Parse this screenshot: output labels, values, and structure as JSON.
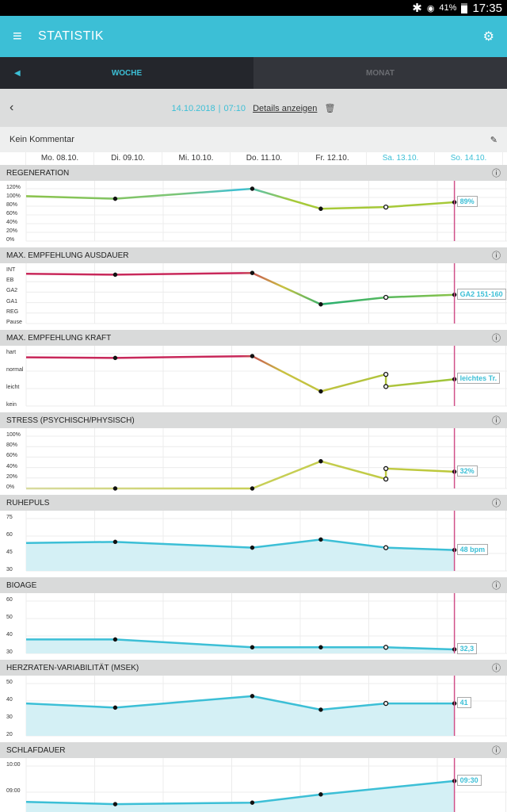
{
  "status_bar": {
    "battery": "41%",
    "time": "17:35"
  },
  "app_bar": {
    "title": "STATISTIK"
  },
  "tabs": [
    {
      "label": "WOCHE",
      "active": true
    },
    {
      "label": "MONAT",
      "active": false
    }
  ],
  "date_bar": {
    "date": "14.10.2018",
    "separator": "|",
    "time": "07:10",
    "details_label": "Details anzeigen"
  },
  "comment": {
    "text": "Kein Kommentar"
  },
  "days": [
    "Mo. 08.10.",
    "Di. 09.10.",
    "Mi. 10.10.",
    "Do. 11.10.",
    "Fr. 12.10.",
    "Sa. 13.10.",
    "So. 14.10."
  ],
  "colors": {
    "accent": "#3cbfd6",
    "marker": "#d0508a",
    "fill": "#d4f0f5"
  },
  "chart_data": [
    {
      "title": "REGENERATION",
      "type": "line",
      "ylabels": [
        "120%",
        "100%",
        "80%",
        "60%",
        "40%",
        "20%",
        "0%"
      ],
      "ymin": 0,
      "ymax": 120,
      "points": [
        [
          0,
          103
        ],
        [
          1.3,
          97
        ],
        [
          3.3,
          120
        ],
        [
          4.3,
          74
        ],
        [
          5.25,
          78
        ],
        [
          6.25,
          89
        ]
      ],
      "value_label": "89%",
      "gradient": "regen",
      "fill": false
    },
    {
      "title": "MAX. EMPFEHLUNG AUSDAUER",
      "type": "line",
      "ylabels": [
        "INT",
        "EB",
        "GA2",
        "GA1",
        "REG",
        "Pause"
      ],
      "ymin": 0,
      "ymax": 6,
      "points": [
        [
          0,
          5.7
        ],
        [
          1.3,
          5.6
        ],
        [
          3.3,
          5.8
        ],
        [
          4.3,
          2.2
        ],
        [
          5.25,
          3
        ],
        [
          6.25,
          3.3
        ]
      ],
      "value_label": "GA2 151-160",
      "gradient": "ausdauer",
      "fill": false
    },
    {
      "title": "MAX. EMPFEHLUNG KRAFT",
      "type": "line",
      "ylabels": [
        "hart",
        "normal",
        "leicht",
        "kein"
      ],
      "ymin": 0,
      "ymax": 4.3,
      "points": [
        [
          0,
          4.0
        ],
        [
          1.3,
          3.95
        ],
        [
          3.3,
          4.1
        ],
        [
          4.3,
          1.2
        ],
        [
          5.25,
          2.6
        ],
        [
          5.25,
          1.6
        ],
        [
          6.25,
          2.2
        ]
      ],
      "value_label": "leichtes Tr.",
      "gradient": "kraft",
      "fill": false
    },
    {
      "title": "STRESS (PSYCHISCH/PHYSISCH)",
      "type": "line",
      "ylabels": [
        "100%",
        "80%",
        "60%",
        "40%",
        "20%",
        "0%"
      ],
      "ymin": 0,
      "ymax": 100,
      "points": [
        [
          0,
          0
        ],
        [
          1.3,
          0
        ],
        [
          3.3,
          0
        ],
        [
          4.3,
          52
        ],
        [
          5.25,
          18
        ],
        [
          5.25,
          38
        ],
        [
          6.25,
          32
        ]
      ],
      "value_label": "32%",
      "gradient": "stress",
      "fill": false
    },
    {
      "title": "RUHEPULS",
      "type": "area",
      "ylabels": [
        "75",
        "60",
        "45",
        "30"
      ],
      "ymin": 30,
      "ymax": 75,
      "points": [
        [
          0,
          54
        ],
        [
          1.3,
          55
        ],
        [
          3.3,
          50
        ],
        [
          4.3,
          57
        ],
        [
          5.25,
          50
        ],
        [
          6.25,
          48
        ]
      ],
      "value_label": "48 bpm",
      "fill": true
    },
    {
      "title": "BIOAGE",
      "type": "area",
      "ylabels": [
        "60",
        "50",
        "40",
        "30"
      ],
      "ymin": 30,
      "ymax": 60,
      "points": [
        [
          0,
          38
        ],
        [
          1.3,
          38
        ],
        [
          3.3,
          33.5
        ],
        [
          4.3,
          33.5
        ],
        [
          5.25,
          33.5
        ],
        [
          6.25,
          32.3
        ]
      ],
      "value_label": "32,3",
      "fill": true
    },
    {
      "title": "HERZRATEN-VARIABILITÄT (MSEK)",
      "type": "area",
      "ylabels": [
        "50",
        "40",
        "30",
        "20"
      ],
      "ymin": 10,
      "ymax": 60,
      "points": [
        [
          0,
          41
        ],
        [
          1.3,
          37
        ],
        [
          3.3,
          48
        ],
        [
          4.3,
          35
        ],
        [
          5.25,
          41
        ],
        [
          6.25,
          41
        ]
      ],
      "value_label": "41",
      "fill": true
    },
    {
      "title": "SCHLAFDAUER",
      "type": "area",
      "ylabels": [
        "10:00",
        "09:00",
        "08:00"
      ],
      "ymin": 7,
      "ymax": 10.5,
      "points": [
        [
          0,
          8.1
        ],
        [
          1.3,
          7.95
        ],
        [
          3.3,
          8.05
        ],
        [
          4.3,
          8.6
        ],
        [
          6.25,
          9.5
        ]
      ],
      "value_label": "09:30",
      "fill": true
    }
  ]
}
